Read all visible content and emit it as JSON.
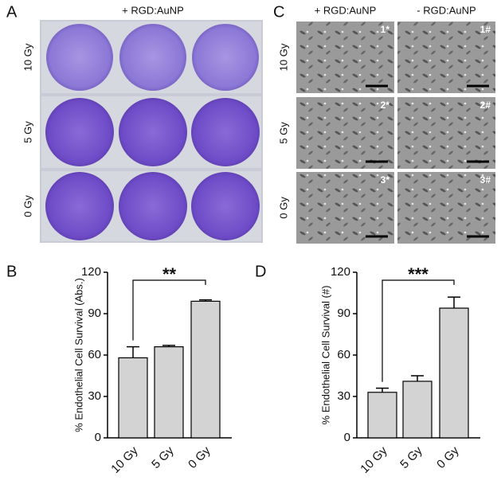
{
  "panels": {
    "A": {
      "label": "A",
      "title": "+ RGD:AuNP",
      "rows": [
        "10 Gy",
        "5 Gy",
        "0 Gy"
      ]
    },
    "C": {
      "label": "C",
      "columns": [
        "+ RGD:AuNP",
        "- RGD:AuNP"
      ],
      "rows": [
        "10 Gy",
        "5 Gy",
        "0 Gy"
      ],
      "tiles": [
        [
          "1*",
          "1#"
        ],
        [
          "2*",
          "2#"
        ],
        [
          "3*",
          "3#"
        ]
      ]
    }
  },
  "chart_data": [
    {
      "type": "bar",
      "panel_label": "B",
      "ylabel": "% Endothelial Cell Survival (Abs.)",
      "categories": [
        "10 Gy",
        "5 Gy",
        "0 Gy"
      ],
      "values": [
        58,
        66,
        99
      ],
      "errors": [
        8,
        1,
        1
      ],
      "color": "#d3d3d3",
      "ylim": [
        0,
        120
      ],
      "yticks": [
        0,
        30,
        60,
        90,
        120
      ],
      "significance": "**"
    },
    {
      "type": "bar",
      "panel_label": "D",
      "ylabel": "% Endothelial Cell Survival (#)",
      "categories": [
        "10 Gy",
        "5 Gy",
        "0 Gy"
      ],
      "values": [
        33,
        41,
        94
      ],
      "errors": [
        3,
        4,
        8
      ],
      "color": "#d3d3d3",
      "ylim": [
        0,
        120
      ],
      "yticks": [
        0,
        30,
        60,
        90,
        120
      ],
      "significance": "***"
    }
  ]
}
